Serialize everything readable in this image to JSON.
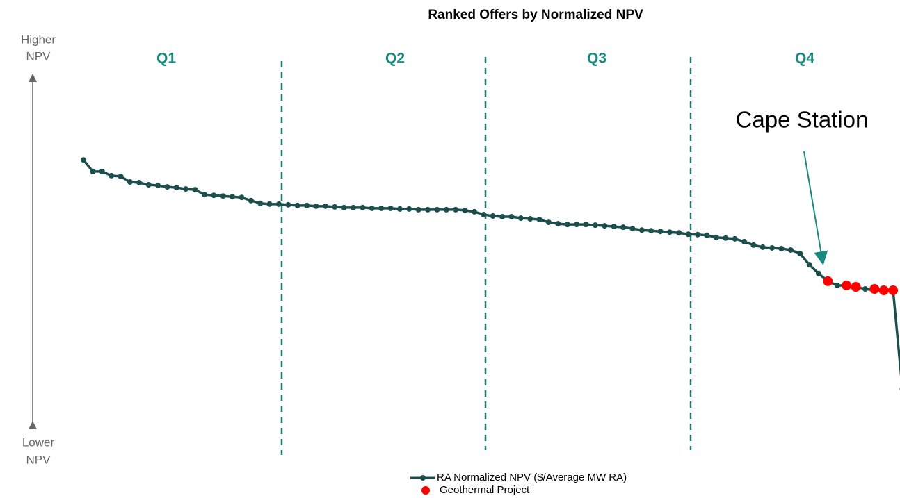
{
  "chart_data": {
    "type": "line",
    "title": "Ranked Offers by Normalized NPV",
    "axis_top_label": [
      "Higher",
      "NPV"
    ],
    "axis_bottom_label": [
      "Lower",
      "NPV"
    ],
    "quartiles": [
      "Q1",
      "Q2",
      "Q3",
      "Q4"
    ],
    "annotation": "Cape Station",
    "ylim": [
      0,
      100
    ],
    "series": [
      {
        "name": "RA Normalized NPV ($/Average MW RA)",
        "color": "#1c4f4c",
        "values": [
          76.2,
          72.9,
          72.9,
          71.7,
          71.5,
          69.9,
          69.7,
          69.1,
          68.9,
          68.5,
          68.3,
          67.9,
          67.7,
          66.3,
          66.1,
          65.9,
          65.7,
          65.5,
          64.6,
          63.8,
          63.6,
          63.6,
          63.4,
          63.2,
          63.2,
          63.0,
          63.0,
          62.8,
          62.6,
          62.6,
          62.6,
          62.4,
          62.4,
          62.4,
          62.2,
          62.2,
          62.0,
          62.0,
          62.0,
          62.0,
          62.0,
          61.8,
          61.4,
          60.6,
          60.2,
          60.0,
          60.0,
          59.6,
          59.4,
          59.2,
          58.4,
          58.0,
          57.8,
          57.8,
          57.8,
          57.6,
          57.4,
          57.2,
          57.0,
          56.6,
          56.2,
          56.0,
          55.8,
          55.6,
          55.4,
          55.0,
          54.9,
          54.7,
          54.1,
          53.9,
          53.7,
          52.9,
          51.9,
          51.3,
          51.1,
          50.9,
          50.5,
          49.5,
          46.3,
          43.8,
          41.6,
          40.4,
          40.4,
          40.0,
          39.4,
          39.0,
          39.0,
          39.0,
          10.9
        ]
      },
      {
        "name": "Geothermal Project",
        "color": "#ff0000",
        "values": [
          null,
          null,
          null,
          null,
          null,
          null,
          null,
          null,
          null,
          null,
          null,
          null,
          null,
          null,
          null,
          null,
          null,
          null,
          null,
          null,
          null,
          null,
          null,
          null,
          null,
          null,
          null,
          null,
          null,
          null,
          null,
          null,
          null,
          null,
          null,
          null,
          null,
          null,
          null,
          null,
          null,
          null,
          null,
          null,
          null,
          null,
          null,
          null,
          null,
          null,
          null,
          null,
          null,
          null,
          null,
          null,
          null,
          null,
          null,
          null,
          null,
          null,
          null,
          null,
          null,
          null,
          null,
          null,
          null,
          null,
          null,
          null,
          null,
          null,
          null,
          null,
          null,
          null,
          null,
          null,
          41.6,
          null,
          40.4,
          40.0,
          null,
          39.4,
          39.0,
          39.0,
          null
        ]
      }
    ]
  }
}
